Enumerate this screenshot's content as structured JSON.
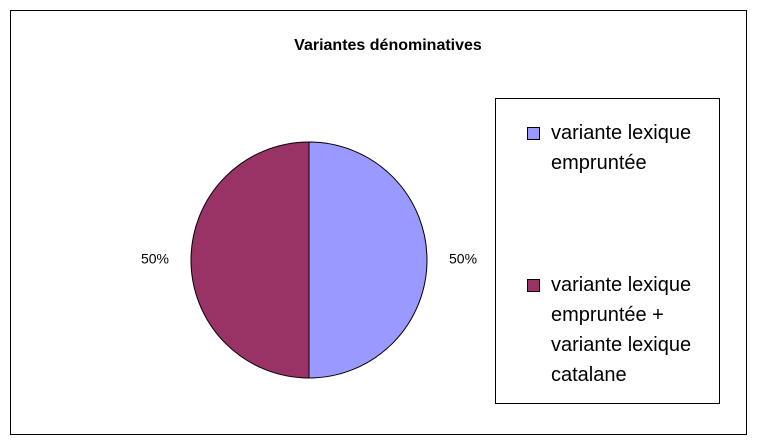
{
  "chart_data": {
    "type": "pie",
    "title": "Variantes dénominatives",
    "categories": [
      "variante lexique empruntée",
      "variante lexique empruntée + variante lexique catalane"
    ],
    "values": [
      50,
      50
    ],
    "value_labels": [
      "50%",
      "50%"
    ],
    "colors": [
      "#9999ff",
      "#993366"
    ],
    "legend": "right"
  }
}
